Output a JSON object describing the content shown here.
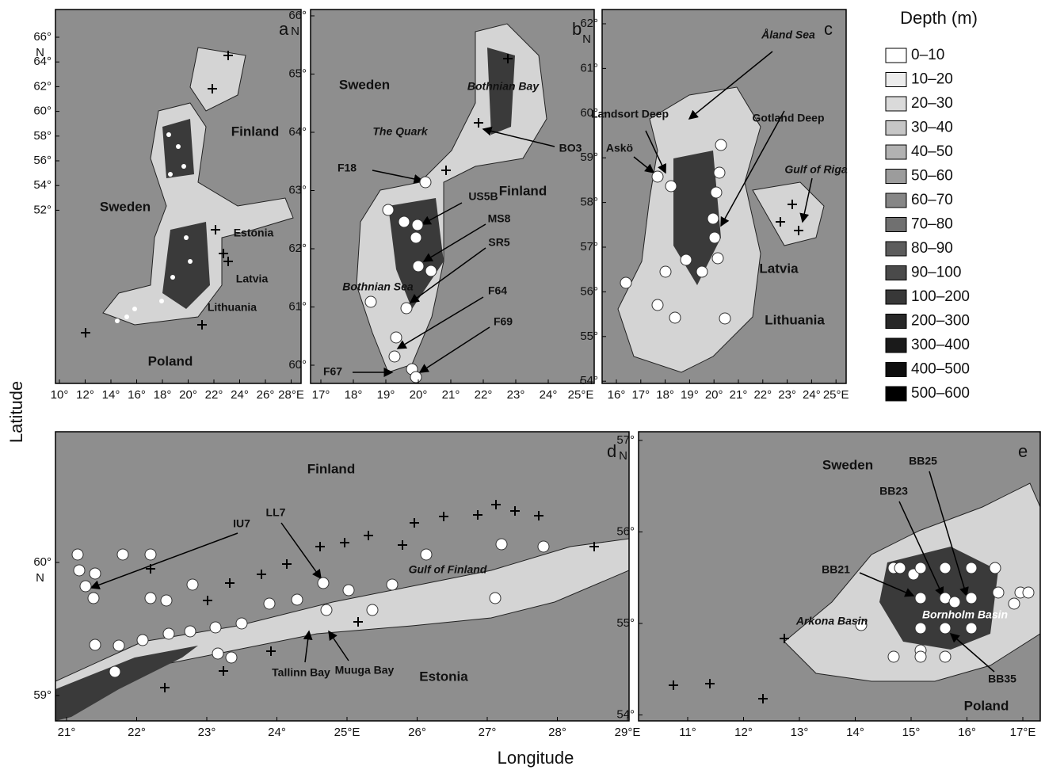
{
  "axis_labels": {
    "y": "Latitude",
    "x": "Longitude"
  },
  "lat_unit": "N",
  "legend": {
    "title": "Depth (m)",
    "items": [
      "0–10",
      "10–20",
      "20–30",
      "30–40",
      "40–50",
      "50–60",
      "60–70",
      "70–80",
      "80–90",
      "90–100",
      "100–200",
      "200–300",
      "300–400",
      "400–500",
      "500–600"
    ],
    "colors": [
      "#ffffff",
      "#ececec",
      "#dadada",
      "#c6c6c6",
      "#b2b2b2",
      "#9c9c9c",
      "#868686",
      "#707070",
      "#5c5c5c",
      "#4a4a4a",
      "#383838",
      "#282828",
      "#1a1a1a",
      "#0e0e0e",
      "#000000"
    ]
  },
  "panels": [
    {
      "letter": "a",
      "yticks": [
        "66°",
        "64°",
        "62°",
        "60°",
        "58°",
        "56°",
        "54°",
        "52°"
      ],
      "xticks": [
        "10°",
        "12°",
        "14°",
        "16°",
        "18°",
        "20°",
        "22°",
        "24°",
        "26°",
        "28°E"
      ],
      "labels": [
        "Finland",
        "Sweden",
        "Estonia",
        "Latvia",
        "Lithuania",
        "Poland"
      ]
    },
    {
      "letter": "b",
      "yticks": [
        "66°",
        "65°",
        "64°",
        "63°",
        "62°",
        "61°",
        "60°"
      ],
      "xticks": [
        "17°",
        "18°",
        "19°",
        "20°",
        "21°",
        "22°",
        "23°",
        "24°",
        "25°E"
      ],
      "labels": [
        "Sweden",
        "Finland",
        "Bothnian Bay",
        "The Quark",
        "Bothnian Sea",
        "F18",
        "US5B",
        "MS8",
        "SR5",
        "F64",
        "F69",
        "F67",
        "BO3"
      ]
    },
    {
      "letter": "c",
      "yticks": [
        "62°",
        "61°",
        "60°",
        "59°",
        "58°",
        "57°",
        "56°",
        "55°",
        "54°"
      ],
      "xticks": [
        "16°",
        "17°",
        "18°",
        "19°",
        "20°",
        "21°",
        "22°",
        "23°",
        "24°",
        "25°E"
      ],
      "labels": [
        "Åland Sea",
        "Gotland Deep",
        "Landsort Deep",
        "Askö",
        "Gulf of Riga",
        "Latvia",
        "Lithuania"
      ]
    },
    {
      "letter": "d",
      "yticks": [
        "60°",
        "59°"
      ],
      "xticks": [
        "21°",
        "22°",
        "23°",
        "24°",
        "25°E",
        "26°",
        "27°",
        "28°",
        "29°E"
      ],
      "labels": [
        "Finland",
        "Estonia",
        "IU7",
        "LL7",
        "Gulf of Finland",
        "Tallinn Bay",
        "Muuga Bay"
      ]
    },
    {
      "letter": "e",
      "yticks": [
        "57°",
        "56°",
        "55°",
        "54°"
      ],
      "xticks": [
        "11°",
        "12°",
        "13°",
        "14°",
        "15°",
        "16°",
        "17°E"
      ],
      "labels": [
        "Sweden",
        "Poland",
        "BB25",
        "BB23",
        "BB21",
        "BB35",
        "Arkona Basin",
        "Bornholm Basin"
      ]
    }
  ]
}
